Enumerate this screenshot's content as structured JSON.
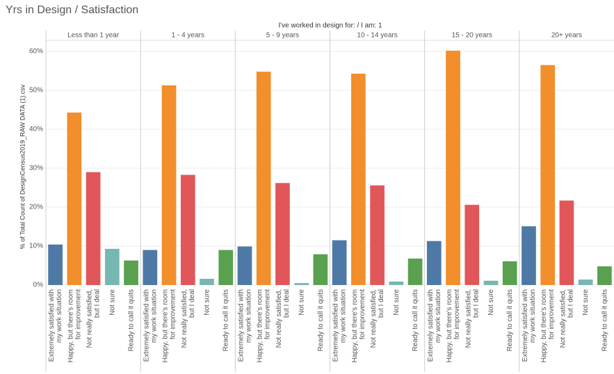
{
  "chart_data": {
    "type": "bar",
    "title": "Yrs in Design / Satisfaction",
    "header": "I've worked in design for:  / I am: 1",
    "ylabel": "% of Total Count of DesignCensus2019_RAW DATA (1).csv",
    "categories": [
      "Extremely satisfied with my work situation",
      "Happy, but there's room for improvement",
      "Not really satisfied, but I deal",
      "Not sure",
      "Ready to call it quits"
    ],
    "colors": [
      "#4e79a7",
      "#f28e2b",
      "#e15759",
      "#76b7b2",
      "#59a14f"
    ],
    "panels": [
      {
        "name": "Less than 1 year",
        "values": [
          10.4,
          44.3,
          29.0,
          9.3,
          6.3
        ]
      },
      {
        "name": "1 - 4 years",
        "values": [
          9.0,
          51.3,
          28.3,
          1.6,
          9.0
        ]
      },
      {
        "name": "5 - 9 years",
        "values": [
          9.9,
          54.8,
          26.2,
          0.5,
          7.9
        ]
      },
      {
        "name": "10 - 14 years",
        "values": [
          11.5,
          54.3,
          25.6,
          0.9,
          6.8
        ]
      },
      {
        "name": "15 - 20 years",
        "values": [
          11.3,
          60.2,
          20.6,
          1.1,
          6.1
        ]
      },
      {
        "name": "20+ years",
        "values": [
          15.1,
          56.5,
          21.7,
          1.4,
          4.8
        ]
      }
    ],
    "ylim": [
      0,
      62.5
    ],
    "yticks": [
      {
        "value": 0,
        "label": "0%"
      },
      {
        "value": 10,
        "label": "10%"
      },
      {
        "value": 20,
        "label": "20%"
      },
      {
        "value": 30,
        "label": "30%"
      },
      {
        "value": 40,
        "label": "40%"
      },
      {
        "value": 50,
        "label": "50%"
      },
      {
        "value": 60,
        "label": "60%"
      }
    ],
    "grid": true
  }
}
